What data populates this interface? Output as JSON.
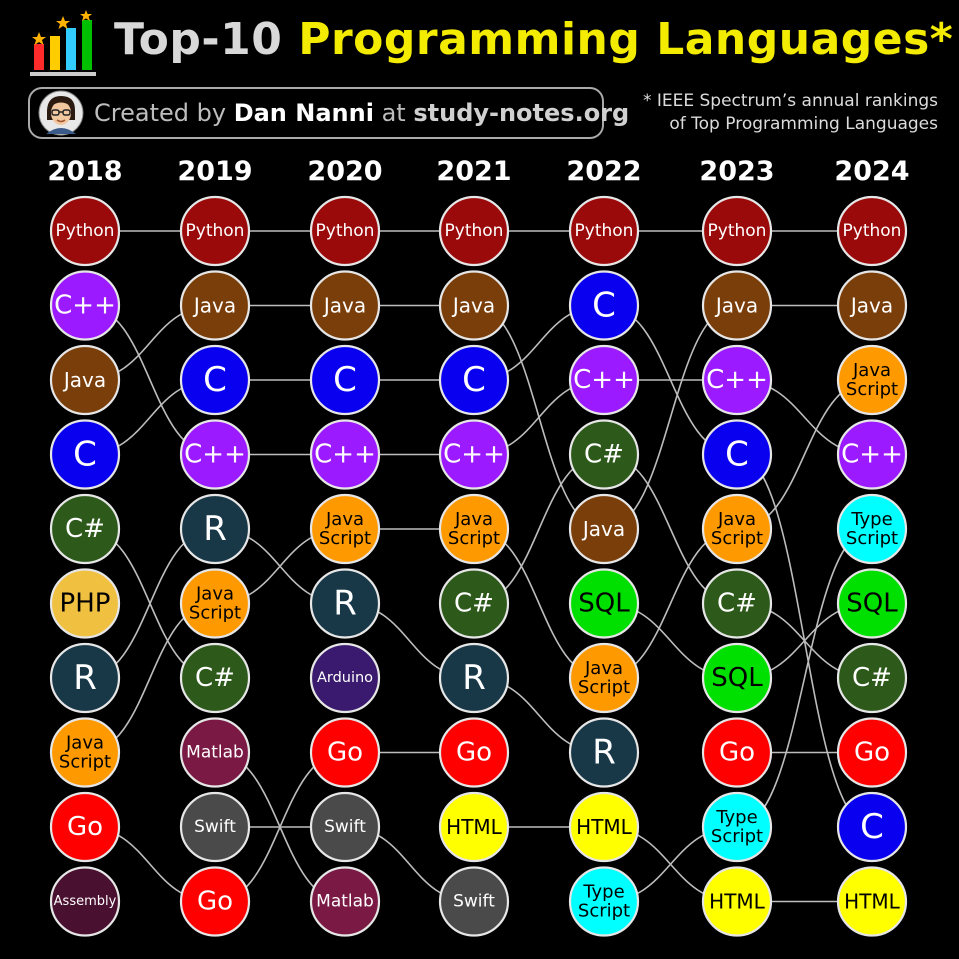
{
  "header": {
    "title_part1": "Top-10",
    "title_part2": "Programming Languages*",
    "credit_prefix": "Created by",
    "credit_author": "Dan Nanni",
    "credit_at": "at",
    "credit_site": "study-notes.org",
    "note_line1": "* IEEE Spectrum’s annual rankings",
    "note_line2": "of Top Programming Languages",
    "logo_icon": "bar-chart-stars-icon",
    "avatar_icon": "avatar-icon"
  },
  "chart_data": {
    "type": "bump",
    "title": "Top-10 Programming Languages*",
    "subtitle": "* IEEE Spectrum’s annual rankings of Top Programming Languages",
    "x": [
      "2018",
      "2019",
      "2020",
      "2021",
      "2022",
      "2023",
      "2024"
    ],
    "rankings": [
      [
        "Python",
        "C++",
        "Java",
        "C",
        "C#",
        "PHP",
        "R",
        "JavaScript",
        "Go",
        "Assembly"
      ],
      [
        "Python",
        "Java",
        "C",
        "C++",
        "R",
        "JavaScript",
        "C#",
        "Matlab",
        "Swift",
        "Go"
      ],
      [
        "Python",
        "Java",
        "C",
        "C++",
        "JavaScript",
        "R",
        "Arduino",
        "Go",
        "Swift",
        "Matlab"
      ],
      [
        "Python",
        "Java",
        "C",
        "C++",
        "JavaScript",
        "C#",
        "R",
        "Go",
        "HTML",
        "Swift"
      ],
      [
        "Python",
        "C",
        "C++",
        "C#",
        "Java",
        "SQL",
        "JavaScript",
        "R",
        "HTML",
        "TypeScript"
      ],
      [
        "Python",
        "Java",
        "C++",
        "C",
        "JavaScript",
        "C#",
        "SQL",
        "Go",
        "TypeScript",
        "HTML"
      ],
      [
        "Python",
        "Java",
        "JavaScript",
        "C++",
        "TypeScript",
        "SQL",
        "C#",
        "Go",
        "C",
        "HTML"
      ]
    ],
    "labels": {
      "Python": [
        "Python"
      ],
      "C++": [
        "C++"
      ],
      "Java": [
        "Java"
      ],
      "C": [
        "C"
      ],
      "C#": [
        "C#"
      ],
      "PHP": [
        "PHP"
      ],
      "R": [
        "R"
      ],
      "JavaScript": [
        "Java",
        "Script"
      ],
      "Go": [
        "Go"
      ],
      "Assembly": [
        "Assembly"
      ],
      "Matlab": [
        "Matlab"
      ],
      "Swift": [
        "Swift"
      ],
      "Arduino": [
        "Arduino"
      ],
      "HTML": [
        "HTML"
      ],
      "SQL": [
        "SQL"
      ],
      "TypeScript": [
        "Type",
        "Script"
      ]
    },
    "colors": {
      "Python": "#9b0a0a",
      "C++": "#9b1aff",
      "Java": "#7a3e0a",
      "C": "#0a00f0",
      "C#": "#2d5a1b",
      "PHP": "#f0c040",
      "R": "#183848",
      "JavaScript": "#ff9900",
      "Go": "#ff0000",
      "Assembly": "#4a1030",
      "Matlab": "#7a1a44",
      "Swift": "#4a4a4a",
      "Arduino": "#3a1a6e",
      "HTML": "#ffff00",
      "SQL": "#00e000",
      "TypeScript": "#00ffff"
    },
    "text_colors": {
      "PHP": "#000000",
      "JavaScript": "#000000",
      "HTML": "#000000",
      "SQL": "#000000",
      "TypeScript": "#000000"
    },
    "connector_color": "#bdbdbd",
    "grid": false,
    "legend": "none"
  }
}
